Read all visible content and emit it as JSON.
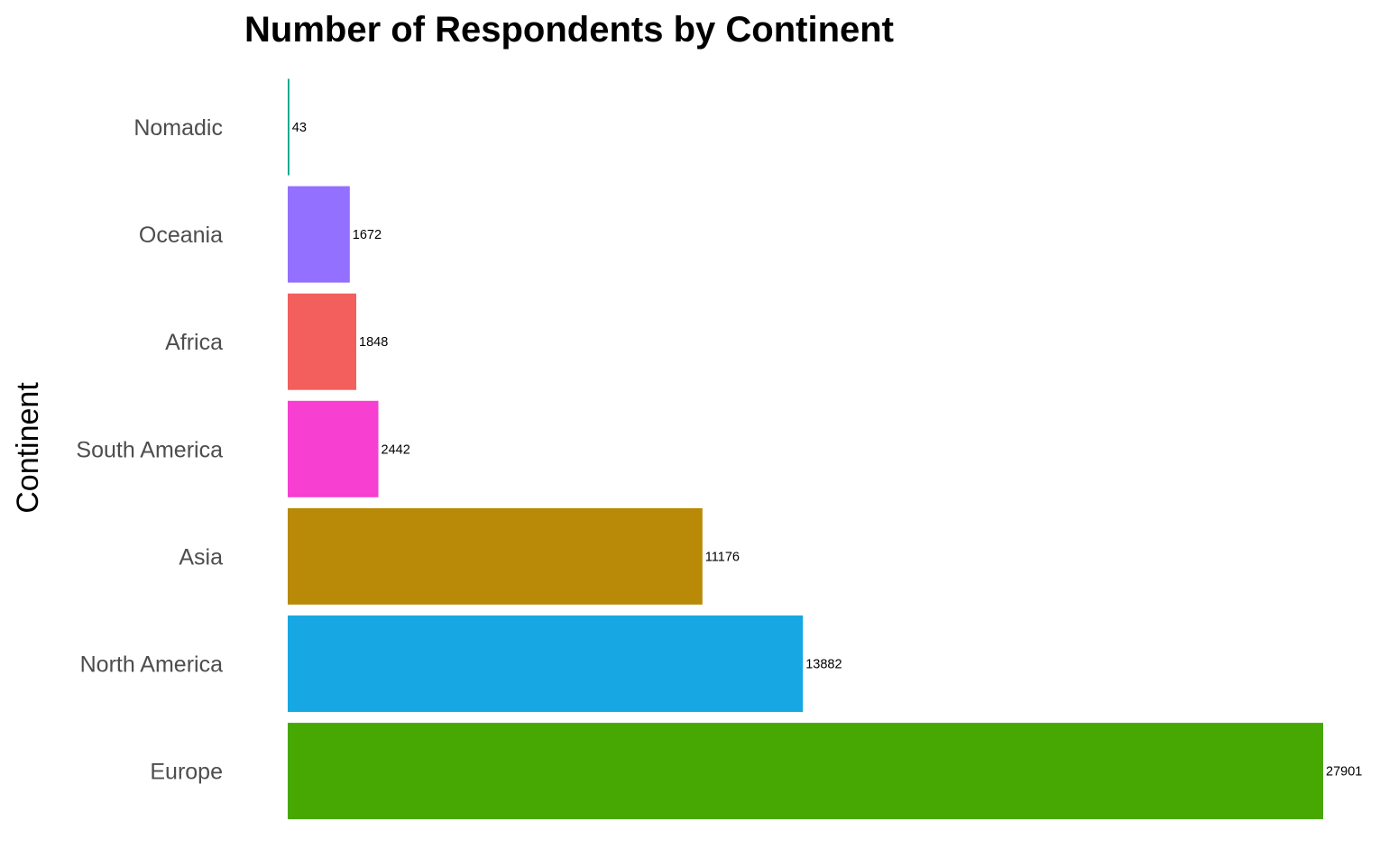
{
  "chart_data": {
    "type": "bar",
    "orientation": "horizontal",
    "title": "Number of Respondents by Continent",
    "xlabel": "",
    "ylabel": "Continent",
    "categories": [
      "Nomadic",
      "Oceania",
      "Africa",
      "South America",
      "Asia",
      "North America",
      "Europe"
    ],
    "values": [
      43,
      1672,
      1848,
      2442,
      11176,
      13882,
      27901
    ],
    "data_labels": [
      "43",
      "1672",
      "1848",
      "2442",
      "11176",
      "13882",
      "27901"
    ],
    "colors": [
      "#00A08A",
      "#9370FF",
      "#F25F5C",
      "#F73FD1",
      "#B88A07",
      "#17A8E3",
      "#47A803"
    ],
    "xlim": [
      0,
      27901
    ],
    "grid": false,
    "legend": "none"
  }
}
